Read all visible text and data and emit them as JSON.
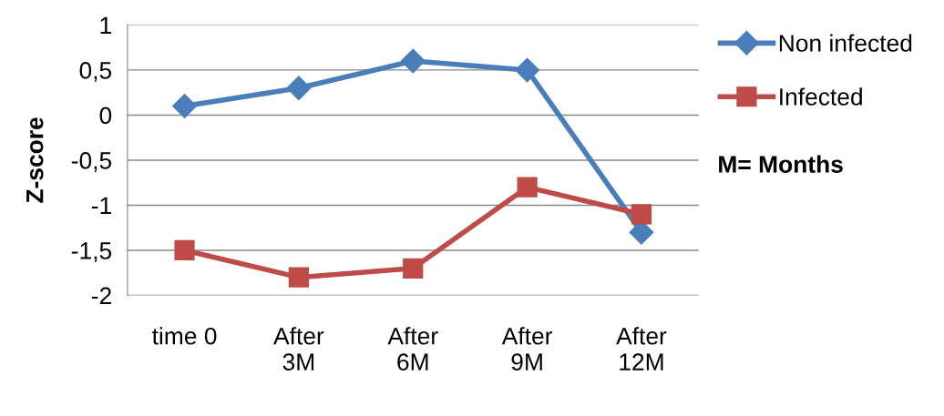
{
  "chart_data": {
    "type": "line",
    "ylabel": "Z-score",
    "categories": [
      "time 0",
      "After\n3M",
      "After\n6M",
      "After\n9M",
      "After\n12M"
    ],
    "series": [
      {
        "name": "Non infected",
        "color": "#4a7ebb",
        "marker": "diamond",
        "values": [
          0.1,
          0.3,
          0.6,
          0.5,
          -1.3
        ]
      },
      {
        "name": "Infected",
        "color": "#be4b48",
        "marker": "square",
        "values": [
          -1.5,
          -1.8,
          -1.7,
          -0.8,
          -1.1
        ]
      }
    ],
    "ylim": [
      -2,
      1
    ],
    "yticks": [
      1,
      {
        "value": 0.5,
        "label": "0,5"
      },
      0,
      {
        "value": -0.5,
        "label": "-0,5"
      },
      -1,
      {
        "value": -1.5,
        "label": "-1,5"
      },
      -2
    ],
    "grid": "y",
    "legend": "right",
    "line_style": "solid",
    "annotations": [
      "M= Months"
    ]
  }
}
